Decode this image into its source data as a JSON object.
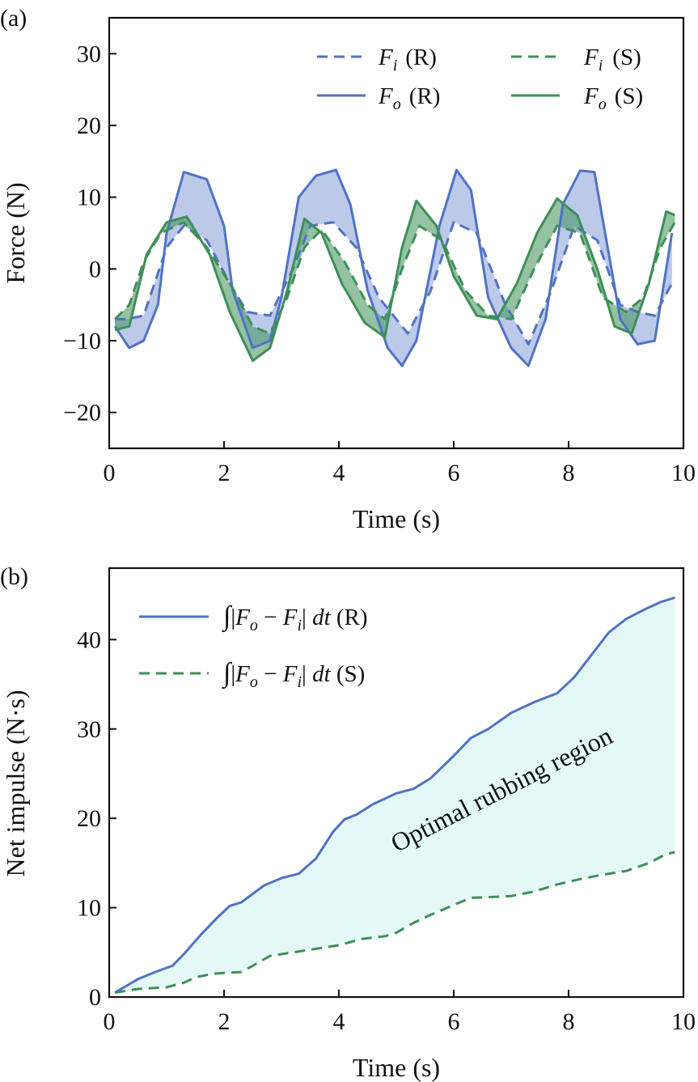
{
  "chart_data": [
    {
      "panel_label": "(a)",
      "type": "line",
      "xlabel": "Time (s)",
      "ylabel": "Force (N)",
      "xlim": [
        0,
        10
      ],
      "ylim": [
        -25,
        35
      ],
      "xticks": [
        0,
        2,
        4,
        6,
        8,
        10
      ],
      "yticks": [
        -20,
        -10,
        0,
        10,
        20,
        30
      ],
      "xtick_labels": [
        "0",
        "2",
        "4",
        "6",
        "8",
        "10"
      ],
      "ytick_labels": [
        "−20",
        "−10",
        "0",
        "10",
        "20",
        "30"
      ],
      "grid": false,
      "legend_position": "top-right",
      "series": [
        {
          "key": "Fi_R",
          "name": "F",
          "sub": "i",
          "suffix": "(R)",
          "style": "dashed",
          "color": "#4f72c4",
          "x": [
            0.1,
            0.3,
            0.6,
            1.0,
            1.3,
            1.7,
            2.1,
            2.4,
            2.8,
            3.2,
            3.5,
            3.9,
            4.3,
            4.7,
            5.2,
            5.6,
            6.0,
            6.4,
            6.9,
            7.3,
            7.7,
            8.1,
            8.5,
            8.9,
            9.2,
            9.5,
            9.8
          ],
          "y": [
            -7,
            -7,
            -6.5,
            3,
            6,
            4,
            -2,
            -6,
            -6.5,
            0,
            6,
            6.5,
            3,
            -4,
            -9,
            -3,
            6.5,
            5,
            -5,
            -10.5,
            -3,
            6,
            4,
            -5,
            -6,
            -6.5,
            -2
          ]
        },
        {
          "key": "Fo_R",
          "name": "F",
          "sub": "o",
          "suffix": "(R)",
          "style": "solid",
          "color": "#4f72c4",
          "x": [
            0.1,
            0.35,
            0.6,
            0.85,
            1.0,
            1.3,
            1.7,
            2.0,
            2.15,
            2.5,
            2.8,
            3.0,
            3.3,
            3.6,
            3.95,
            4.2,
            4.5,
            4.85,
            5.1,
            5.35,
            5.75,
            6.05,
            6.3,
            6.6,
            7.0,
            7.3,
            7.6,
            7.9,
            8.2,
            8.45,
            8.9,
            9.2,
            9.5,
            9.8
          ],
          "y": [
            -8,
            -11,
            -10,
            -5,
            5,
            13.5,
            12.5,
            6,
            -3,
            -11,
            -10,
            -4,
            10,
            13,
            13.8,
            9,
            -3,
            -11,
            -13.5,
            -10,
            6,
            13.8,
            11,
            -4,
            -11,
            -13.5,
            -7,
            9,
            13.7,
            13.5,
            -7,
            -10.5,
            -10,
            5
          ]
        },
        {
          "key": "Fi_S",
          "name": "F",
          "sub": "i",
          "suffix": "(S)",
          "style": "dashed",
          "color": "#3e8f58",
          "x": [
            0.1,
            0.35,
            0.6,
            0.9,
            1.3,
            1.7,
            2.1,
            2.5,
            2.8,
            3.1,
            3.4,
            3.7,
            4.1,
            4.5,
            4.8,
            5.1,
            5.4,
            5.8,
            6.2,
            6.6,
            7.0,
            7.4,
            7.8,
            8.2,
            8.6,
            9.0,
            9.3,
            9.6,
            9.85
          ],
          "y": [
            -7,
            -5,
            1,
            5,
            6.5,
            3,
            -2,
            -8,
            -9,
            -4,
            3,
            5.5,
            1,
            -5,
            -7,
            0,
            6,
            4,
            -3,
            -6.5,
            -7,
            0,
            6,
            5,
            -4,
            -6,
            -4,
            3,
            6.5
          ]
        },
        {
          "key": "Fo_S",
          "name": "F",
          "sub": "o",
          "suffix": "(S)",
          "style": "solid",
          "color": "#3e8f58",
          "x": [
            0.1,
            0.35,
            0.65,
            1.0,
            1.35,
            1.75,
            2.1,
            2.5,
            2.8,
            3.1,
            3.4,
            3.7,
            4.05,
            4.45,
            4.8,
            5.1,
            5.35,
            5.7,
            6.0,
            6.4,
            6.75,
            7.1,
            7.45,
            7.8,
            8.15,
            8.5,
            8.8,
            9.1,
            9.4,
            9.7,
            9.85
          ],
          "y": [
            -8.5,
            -8,
            2,
            6.5,
            7.3,
            2,
            -6,
            -12.8,
            -11,
            -3,
            7,
            5,
            -2,
            -7.5,
            -9.5,
            3,
            9.5,
            6,
            -1,
            -6.5,
            -7,
            -2,
            5,
            9.8,
            7.5,
            0,
            -8,
            -9,
            -2,
            8,
            7.5
          ]
        }
      ]
    },
    {
      "panel_label": "(b)",
      "type": "line",
      "xlabel": "Time (s)",
      "ylabel": "Net impulse (N·s)",
      "xlim": [
        0,
        10
      ],
      "ylim": [
        0,
        48
      ],
      "xticks": [
        0,
        2,
        4,
        6,
        8,
        10
      ],
      "yticks": [
        0,
        10,
        20,
        30,
        40
      ],
      "xtick_labels": [
        "0",
        "2",
        "4",
        "6",
        "8",
        "10"
      ],
      "ytick_labels": [
        "0",
        "10",
        "20",
        "30",
        "40"
      ],
      "grid": false,
      "legend_position": "top-left",
      "annotation": "Optimal rubbing region",
      "fill_color": "#e4f8f8",
      "series": [
        {
          "key": "imp_R",
          "suffix": "(R)",
          "style": "solid",
          "color": "#4f72c4",
          "x": [
            0.1,
            0.5,
            0.8,
            1.1,
            1.3,
            1.6,
            1.9,
            2.1,
            2.3,
            2.7,
            3.0,
            3.3,
            3.6,
            3.9,
            4.1,
            4.3,
            4.6,
            5.0,
            5.3,
            5.6,
            6.0,
            6.3,
            6.6,
            7.0,
            7.4,
            7.8,
            8.1,
            8.4,
            8.7,
            9.0,
            9.3,
            9.6,
            9.85
          ],
          "y": [
            0.5,
            2.0,
            2.8,
            3.5,
            4.8,
            7.0,
            9.0,
            10.2,
            10.6,
            12.5,
            13.3,
            13.8,
            15.5,
            18.5,
            19.9,
            20.4,
            21.6,
            22.8,
            23.3,
            24.5,
            27.0,
            29.0,
            30.0,
            31.8,
            33.0,
            34.0,
            35.8,
            38.3,
            40.8,
            42.3,
            43.3,
            44.2,
            44.7
          ]
        },
        {
          "key": "imp_S",
          "suffix": "(S)",
          "style": "dashed",
          "color": "#3e8f58",
          "x": [
            0.1,
            0.5,
            1.0,
            1.3,
            1.5,
            1.8,
            2.0,
            2.3,
            2.5,
            2.8,
            3.2,
            3.6,
            4.0,
            4.4,
            4.8,
            5.0,
            5.3,
            5.6,
            6.0,
            6.3,
            6.7,
            7.0,
            7.4,
            7.8,
            8.2,
            8.6,
            9.0,
            9.4,
            9.7,
            9.85
          ],
          "y": [
            0.5,
            0.9,
            1.1,
            1.6,
            2.2,
            2.6,
            2.7,
            2.8,
            3.5,
            4.6,
            5.0,
            5.4,
            5.8,
            6.5,
            6.8,
            7.2,
            8.3,
            9.2,
            10.3,
            11.1,
            11.2,
            11.3,
            11.8,
            12.6,
            13.2,
            13.7,
            14.1,
            15.0,
            16.0,
            16.2
          ]
        }
      ]
    }
  ]
}
